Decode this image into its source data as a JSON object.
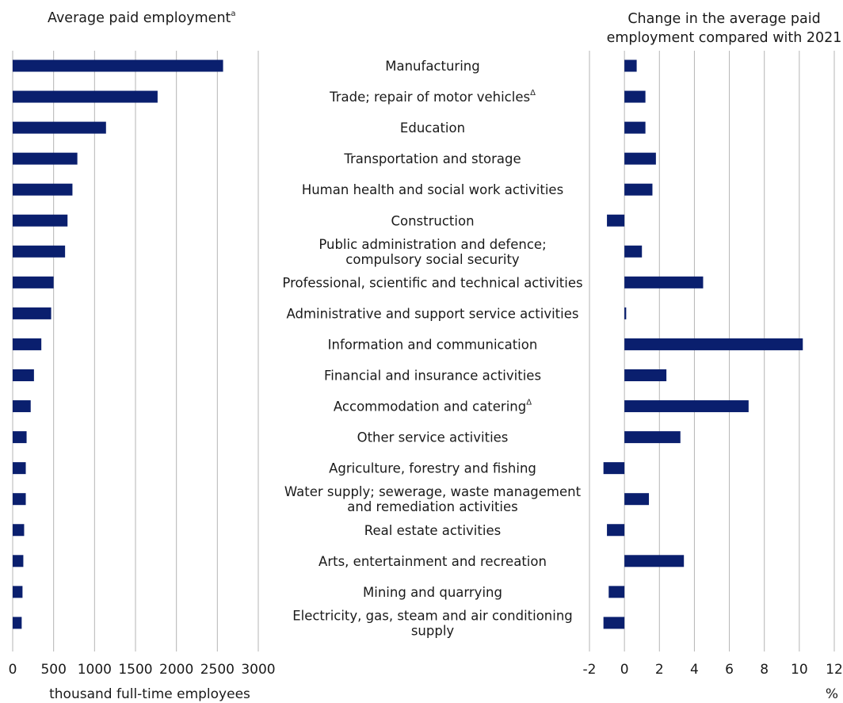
{
  "chart_data": [
    {
      "type": "bar",
      "orientation": "horizontal",
      "title": "Average paid employment",
      "title_superscript": "a",
      "xlabel": "thousand full-time employees",
      "xlim": [
        0,
        3000
      ],
      "xticks": [
        "0",
        "500",
        "1000",
        "1500",
        "2000",
        "2500",
        "3000"
      ],
      "grid": true,
      "categories": [
        "Manufacturing",
        "Trade; repair of motor vehicles",
        "Education",
        "Transportation and storage",
        "Human health and social work  activities",
        "Construction",
        "Public administration and defence; compulsory social security",
        "Professional, scientific and technical activities",
        "Administrative and support service activities",
        "Information and communication",
        "Financial and insurance activities",
        "Accommodation and catering",
        "Other service activities",
        "Agriculture, forestry and fishing",
        "Water supply; sewerage, waste management and remediation activities",
        "Real estate activities",
        "Arts, entertainment and recreation",
        "Mining and quarrying",
        "Electricity, gas, steam and air conditioning supply"
      ],
      "values": [
        2570,
        1770,
        1140,
        790,
        730,
        670,
        640,
        500,
        470,
        350,
        260,
        220,
        170,
        160,
        160,
        140,
        130,
        120,
        110
      ],
      "color": "#0a1f6e"
    },
    {
      "type": "bar",
      "orientation": "horizontal",
      "title": "Change in the average paid employment compared with 2021",
      "xlabel": "%",
      "xlim": [
        -2,
        12
      ],
      "xticks": [
        "-2",
        "0",
        "2",
        "4",
        "6",
        "8",
        "10",
        "12"
      ],
      "grid": true,
      "values": [
        0.7,
        1.2,
        1.2,
        1.8,
        1.6,
        -1.0,
        1.0,
        4.5,
        0.1,
        10.2,
        2.4,
        7.1,
        3.2,
        -1.2,
        1.4,
        -1.0,
        3.4,
        -0.9,
        -1.2
      ],
      "color": "#0a1f6e"
    }
  ],
  "labels": {
    "title_left": "Average paid employment",
    "title_left_sup": "a",
    "title_right_line1": "Change in the average paid",
    "title_right_line2": "employment compared with 2021",
    "xlabel_left": "thousand full-time employees",
    "xlabel_right": "%",
    "delta_sup": "Δ",
    "cat_lines": [
      [
        "Manufacturing"
      ],
      [
        "Trade; repair of motor vehicles"
      ],
      [
        "Education"
      ],
      [
        "Transportation and storage"
      ],
      [
        "Human health and social work  activities"
      ],
      [
        "Construction"
      ],
      [
        "Public administration and defence;",
        "compulsory social security"
      ],
      [
        "Professional, scientific and technical activities"
      ],
      [
        "Administrative and support service activities"
      ],
      [
        "Information and communication"
      ],
      [
        "Financial and insurance activities"
      ],
      [
        "Accommodation and catering"
      ],
      [
        "Other service activities"
      ],
      [
        "Agriculture, forestry and fishing"
      ],
      [
        "Water supply; sewerage, waste management",
        "and remediation activities"
      ],
      [
        "Real estate activities"
      ],
      [
        "Arts, entertainment and recreation"
      ],
      [
        "Mining and quarrying"
      ],
      [
        "Electricity, gas, steam and air conditioning",
        "supply"
      ]
    ],
    "delta_marked": [
      1,
      11
    ]
  }
}
